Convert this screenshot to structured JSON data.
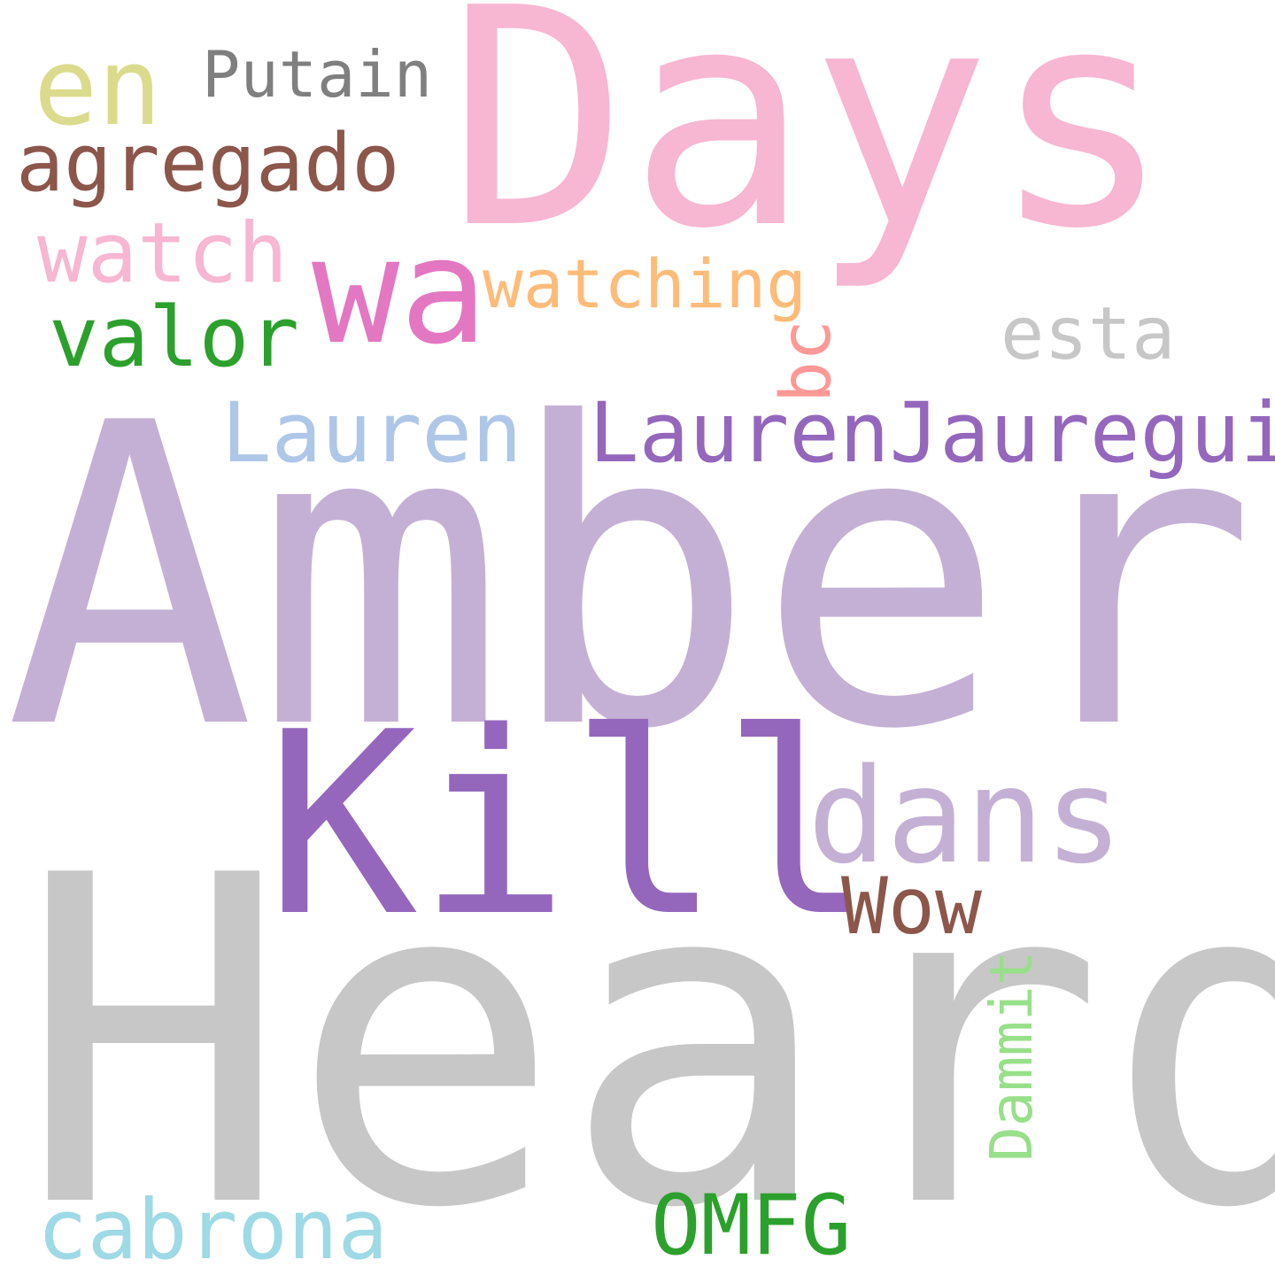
{
  "cloud": {
    "words": {
      "days": {
        "text": "Days",
        "color": "#f7b6d2"
      },
      "amber": {
        "text": "Amber",
        "color": "#c5b0d5"
      },
      "heard": {
        "text": "Heard",
        "color": "#c7c7c7"
      },
      "kill": {
        "text": "Kill",
        "color": "#9467bd"
      },
      "en": {
        "text": "en",
        "color": "#dbdb8d"
      },
      "putain": {
        "text": "Putain",
        "color": "#7f7f7f"
      },
      "agregado": {
        "text": "agregado",
        "color": "#8c564b"
      },
      "watch": {
        "text": "watch",
        "color": "#f7b6d2"
      },
      "wa": {
        "text": "wa",
        "color": "#e377c2"
      },
      "watching": {
        "text": "watching",
        "color": "#ffbb78"
      },
      "valor": {
        "text": "valor",
        "color": "#2ca02c"
      },
      "esta": {
        "text": "esta",
        "color": "#c7c7c7"
      },
      "lauren": {
        "text": "Lauren",
        "color": "#aec7e8"
      },
      "laurenj": {
        "text": "LaurenJauregui",
        "color": "#9467bd"
      },
      "dans": {
        "text": "dans",
        "color": "#c5b0d5"
      },
      "wow": {
        "text": "Wow",
        "color": "#8c564b"
      },
      "cabrona": {
        "text": "cabrona",
        "color": "#9edae5"
      },
      "omfg": {
        "text": "OMFG",
        "color": "#2ca02c"
      },
      "bc": {
        "text": "bc",
        "color": "#ff9896"
      },
      "dammit": {
        "text": "Dammit",
        "color": "#98df8a"
      }
    }
  }
}
